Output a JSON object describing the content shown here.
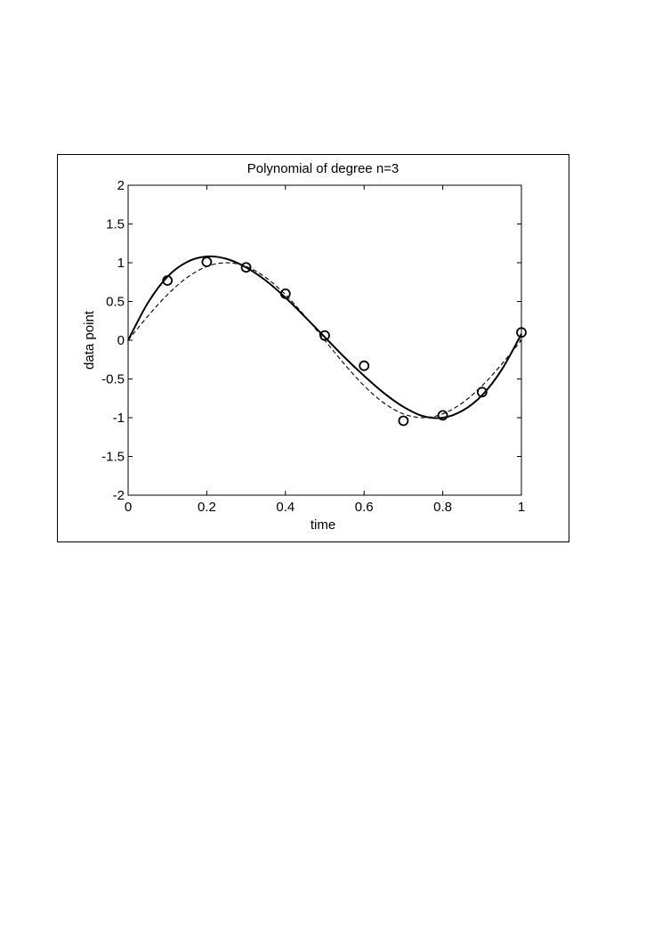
{
  "chart_data": {
    "type": "line",
    "title": "Polynomial of degree n=3",
    "xlabel": "time",
    "ylabel": "data point",
    "xlim": [
      0,
      1
    ],
    "ylim": [
      -2,
      2
    ],
    "xticks": [
      0,
      0.2,
      0.4,
      0.6,
      0.8,
      1
    ],
    "xtick_labels": [
      "0",
      "0.2",
      "0.4",
      "0.6",
      "0.8",
      "1"
    ],
    "yticks": [
      2,
      1.5,
      1,
      0.5,
      0,
      -0.5,
      -1,
      -1.5,
      -2
    ],
    "ytick_labels": [
      "2",
      "1.5",
      "1",
      "0.5",
      "0",
      "-0.5",
      "-1",
      "-1.5",
      "-2"
    ],
    "grid": false,
    "series": [
      {
        "style": "markers",
        "marker": "circle",
        "x": [
          0.1,
          0.2,
          0.3,
          0.4,
          0.5,
          0.6,
          0.7,
          0.8,
          0.9,
          1.0
        ],
        "y": [
          0.77,
          1.01,
          0.94,
          0.6,
          0.06,
          -0.33,
          -1.04,
          -0.97,
          -0.67,
          0.1
        ]
      },
      {
        "style": "solid",
        "x": [
          0,
          0.05,
          0.1,
          0.15,
          0.2,
          0.25,
          0.3,
          0.35,
          0.4,
          0.45,
          0.5,
          0.55,
          0.6,
          0.65,
          0.7,
          0.75,
          0.8,
          0.85,
          0.9,
          0.95,
          1.0
        ],
        "y": [
          0.0,
          0.48,
          0.82,
          1.01,
          1.08,
          1.05,
          0.94,
          0.77,
          0.55,
          0.3,
          0.04,
          -0.22,
          -0.46,
          -0.68,
          -0.86,
          -0.98,
          -1.0,
          -0.91,
          -0.71,
          -0.38,
          0.08
        ]
      },
      {
        "style": "dashed",
        "x": [
          0,
          0.05,
          0.1,
          0.15,
          0.2,
          0.25,
          0.3,
          0.35,
          0.4,
          0.45,
          0.5,
          0.55,
          0.6,
          0.65,
          0.7,
          0.75,
          0.8,
          0.85,
          0.9,
          0.95,
          1.0
        ],
        "y": [
          0.0,
          0.309,
          0.588,
          0.809,
          0.951,
          1.0,
          0.951,
          0.809,
          0.588,
          0.309,
          0.0,
          -0.309,
          -0.588,
          -0.809,
          -0.951,
          -1.0,
          -0.951,
          -0.809,
          -0.588,
          -0.309,
          0.0
        ]
      }
    ],
    "colors": {
      "ink": "#000000",
      "background": "#ffffff"
    }
  }
}
